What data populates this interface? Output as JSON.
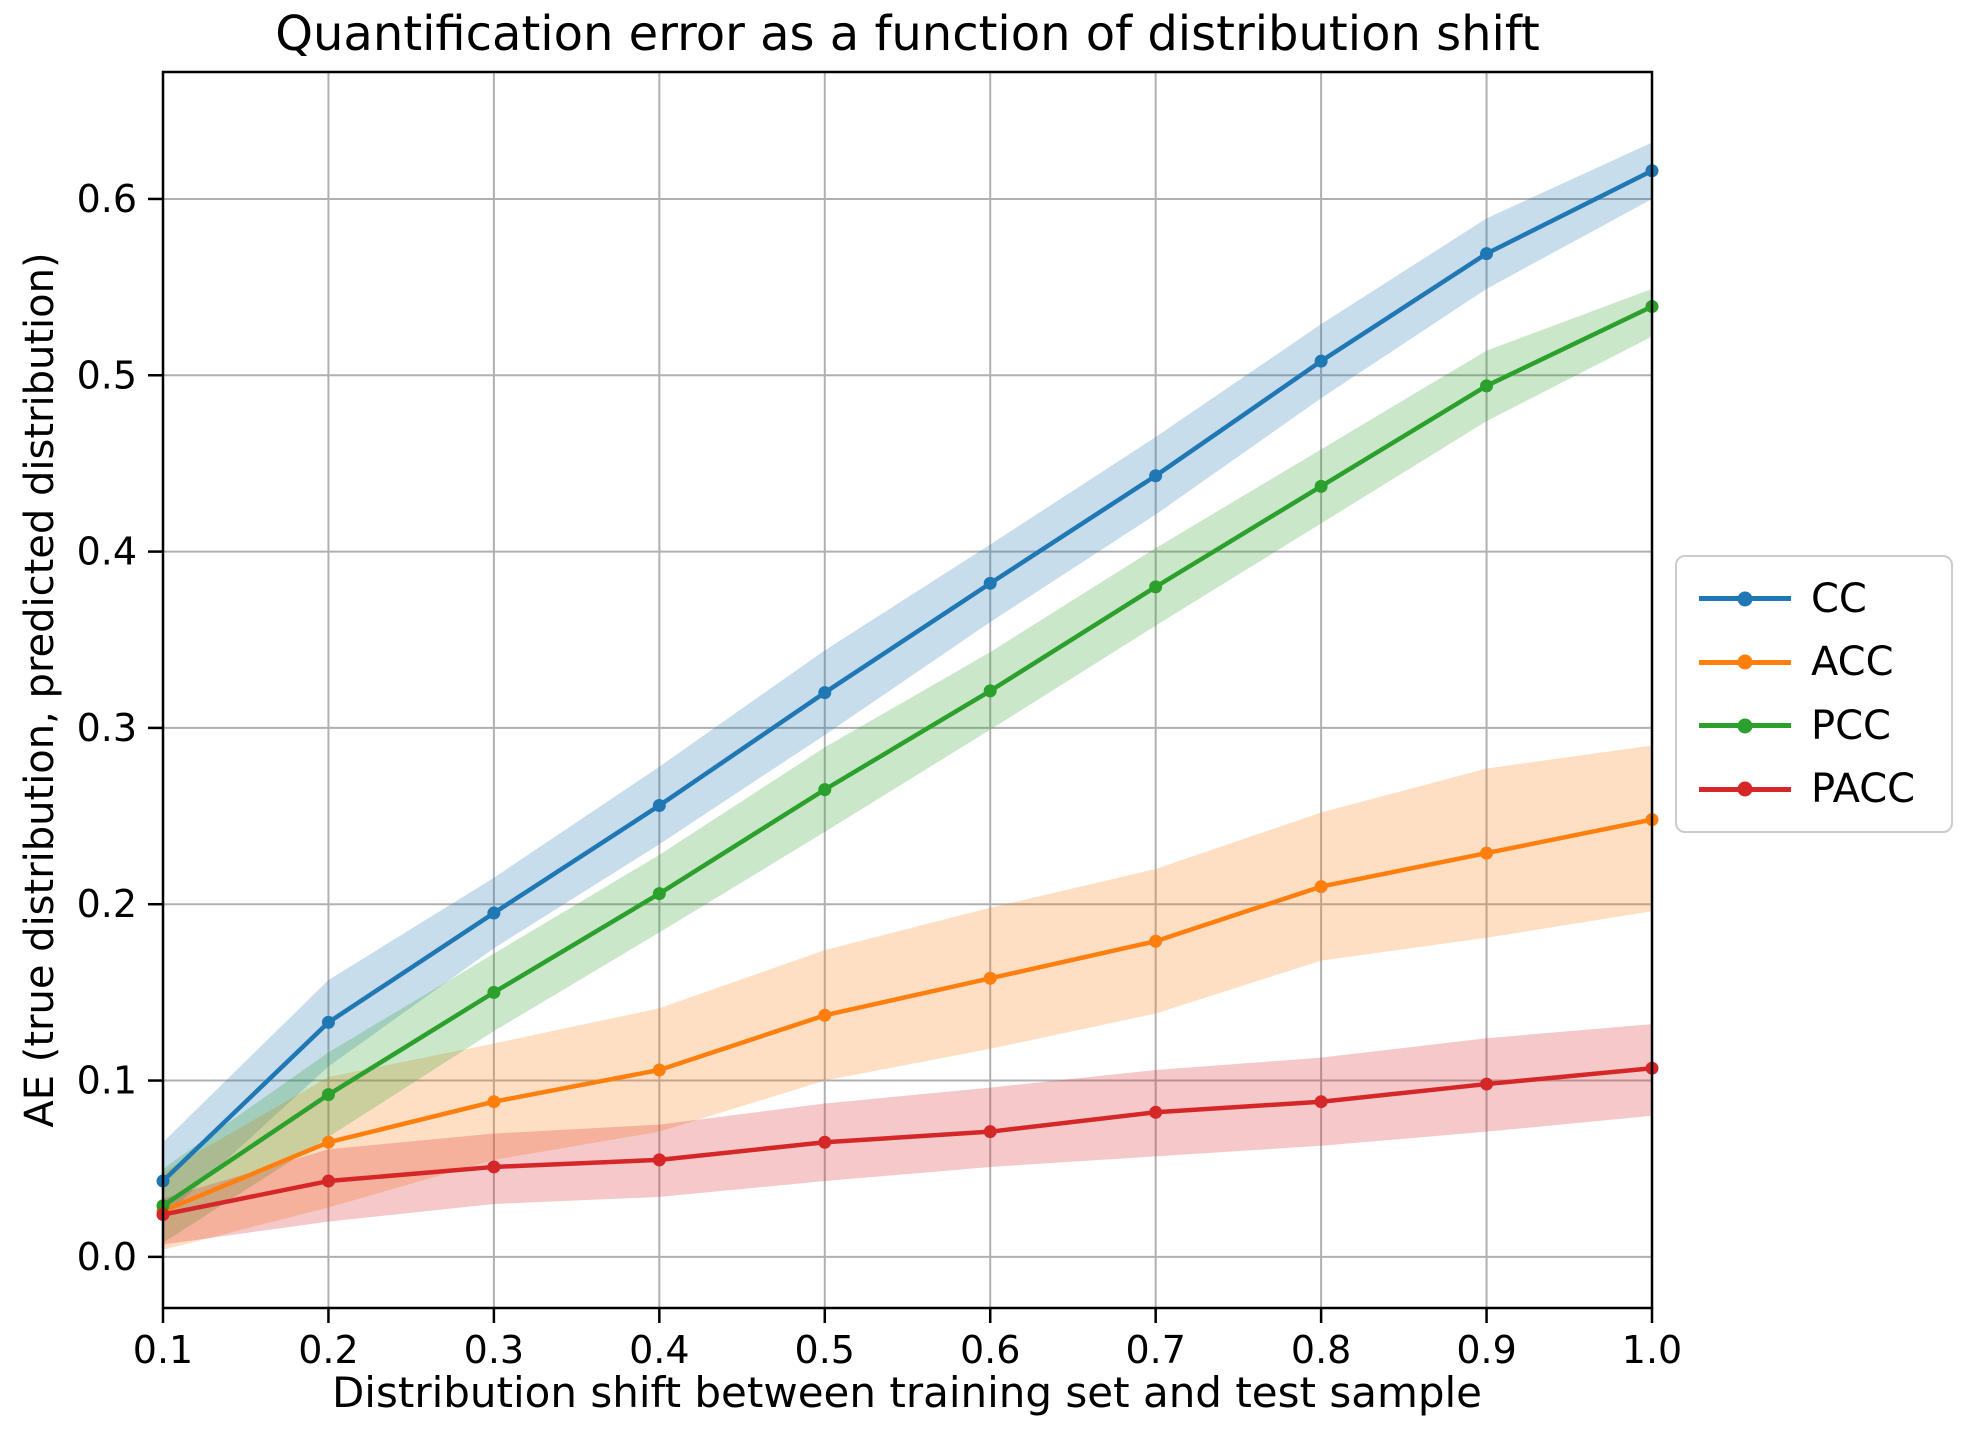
{
  "chart_data": {
    "type": "line",
    "title": "Quantification error as a function of distribution shift",
    "xlabel": "Distribution shift between training set and test sample",
    "ylabel": "AE (true distribution, predicted distribution)",
    "x": [
      0.1,
      0.2,
      0.3,
      0.4,
      0.5,
      0.6,
      0.7,
      0.8,
      0.9,
      1.0
    ],
    "xlim": [
      0.1,
      1.0
    ],
    "ylim": [
      -0.029,
      0.672
    ],
    "xtick_labels": [
      "0.1",
      "0.2",
      "0.3",
      "0.4",
      "0.5",
      "0.6",
      "0.7",
      "0.8",
      "0.9",
      "1.0"
    ],
    "ytick_labels": [
      "0.0",
      "0.1",
      "0.2",
      "0.3",
      "0.4",
      "0.5",
      "0.6"
    ],
    "ytick_values": [
      0.0,
      0.1,
      0.2,
      0.3,
      0.4,
      0.5,
      0.6
    ],
    "grid": true,
    "grid_color": "#b0b0b0",
    "legend_position": "right-outside",
    "band_opacity": 0.25,
    "marker": "circle",
    "series": [
      {
        "name": "CC",
        "color": "#1f77b4",
        "values": [
          0.043,
          0.133,
          0.195,
          0.256,
          0.32,
          0.382,
          0.443,
          0.508,
          0.569,
          0.616
        ],
        "band_low": [
          0.022,
          0.108,
          0.175,
          0.234,
          0.296,
          0.36,
          0.421,
          0.487,
          0.549,
          0.6
        ],
        "band_high": [
          0.065,
          0.157,
          0.215,
          0.278,
          0.344,
          0.404,
          0.465,
          0.529,
          0.589,
          0.632
        ]
      },
      {
        "name": "ACC",
        "color": "#ff7f0e",
        "values": [
          0.026,
          0.065,
          0.088,
          0.106,
          0.137,
          0.158,
          0.179,
          0.21,
          0.229,
          0.248
        ],
        "band_low": [
          0.004,
          0.028,
          0.055,
          0.071,
          0.1,
          0.118,
          0.138,
          0.168,
          0.181,
          0.196
        ],
        "band_high": [
          0.048,
          0.102,
          0.121,
          0.141,
          0.174,
          0.198,
          0.22,
          0.252,
          0.277,
          0.29
        ]
      },
      {
        "name": "PCC",
        "color": "#2ca02c",
        "values": [
          0.029,
          0.092,
          0.15,
          0.206,
          0.265,
          0.321,
          0.38,
          0.437,
          0.494,
          0.539
        ],
        "band_low": [
          0.008,
          0.068,
          0.128,
          0.184,
          0.241,
          0.299,
          0.358,
          0.416,
          0.474,
          0.522
        ],
        "band_high": [
          0.05,
          0.116,
          0.172,
          0.228,
          0.289,
          0.343,
          0.402,
          0.458,
          0.514,
          0.549
        ]
      },
      {
        "name": "PACC",
        "color": "#d62728",
        "values": [
          0.024,
          0.043,
          0.051,
          0.055,
          0.065,
          0.071,
          0.082,
          0.088,
          0.098,
          0.107
        ],
        "band_low": [
          0.007,
          0.02,
          0.03,
          0.034,
          0.043,
          0.051,
          0.057,
          0.063,
          0.071,
          0.08
        ],
        "band_high": [
          0.033,
          0.061,
          0.07,
          0.075,
          0.087,
          0.096,
          0.106,
          0.113,
          0.124,
          0.132
        ]
      }
    ],
    "legend_order": [
      "CC",
      "ACC",
      "PCC",
      "PACC"
    ]
  }
}
